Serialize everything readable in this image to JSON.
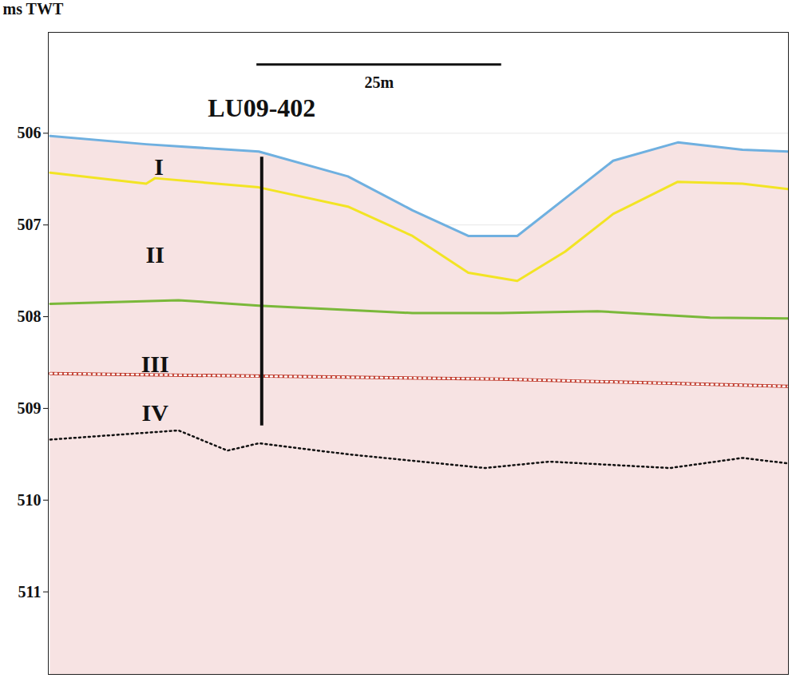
{
  "chart_data": {
    "type": "line",
    "y_label": "ms TWT",
    "xlim": [
      0,
      75.6
    ],
    "ylim": [
      511.9,
      504.9
    ],
    "yticks": [
      506,
      507,
      508,
      509,
      510,
      511
    ],
    "grid": true,
    "tick_labels": "y",
    "series": [
      {
        "color": "#6fb0e0",
        "line_style": "solid",
        "x": [
          0.2,
          10.0,
          21.5,
          30.6,
          37.2,
          42.9,
          47.9,
          52.8,
          57.7,
          64.3,
          70.9,
          75.6
        ],
        "values": [
          506.03,
          506.12,
          506.2,
          506.47,
          506.84,
          507.12,
          507.12,
          506.71,
          506.3,
          506.1,
          506.18,
          506.2
        ]
      },
      {
        "color": "#f2e424",
        "line_style": "solid",
        "x": [
          0.2,
          10.0,
          10.9,
          21.5,
          30.6,
          37.2,
          42.9,
          47.9,
          52.8,
          57.7,
          64.3,
          70.9,
          75.6
        ],
        "values": [
          506.43,
          506.55,
          506.49,
          506.59,
          506.8,
          507.12,
          507.52,
          507.61,
          507.29,
          506.88,
          506.53,
          506.55,
          506.61
        ]
      },
      {
        "color": "#7ab83a",
        "line_style": "solid",
        "x": [
          0.2,
          13.3,
          21.5,
          37.2,
          46.2,
          56.1,
          67.6,
          75.6
        ],
        "values": [
          507.86,
          507.82,
          507.88,
          507.96,
          507.96,
          507.94,
          508.01,
          508.02
        ]
      },
      {
        "color": "#ffffff",
        "line_style": "dotted",
        "x": [
          0.2,
          30.6,
          46.2,
          75.6
        ],
        "values": [
          508.62,
          508.66,
          508.68,
          508.76
        ]
      },
      {
        "color": "#111111",
        "line_style": "dotted",
        "x": [
          0.2,
          13.3,
          18.3,
          21.5,
          30.6,
          44.6,
          51.2,
          63.5,
          70.9,
          75.6
        ],
        "values": [
          509.34,
          509.24,
          509.46,
          509.38,
          509.5,
          509.65,
          509.58,
          509.65,
          509.54,
          509.6
        ]
      }
    ],
    "annotations": [
      {
        "text": "I",
        "x": 11.3,
        "y": 506.37
      },
      {
        "text": "II",
        "x": 10.9,
        "y": 507.33
      },
      {
        "text": "III",
        "x": 10.9,
        "y": 508.52
      },
      {
        "text": "IV",
        "x": 10.9,
        "y": 509.05
      }
    ],
    "core": {
      "text": "LU09-402",
      "x": 21.8,
      "y_top": 506.26,
      "y_bottom": 509.19,
      "label_y": 505.73
    },
    "scale_bar": {
      "text": "25m",
      "length": 25,
      "x": 21.3,
      "y": 505.25,
      "label_y": 505.45
    }
  }
}
